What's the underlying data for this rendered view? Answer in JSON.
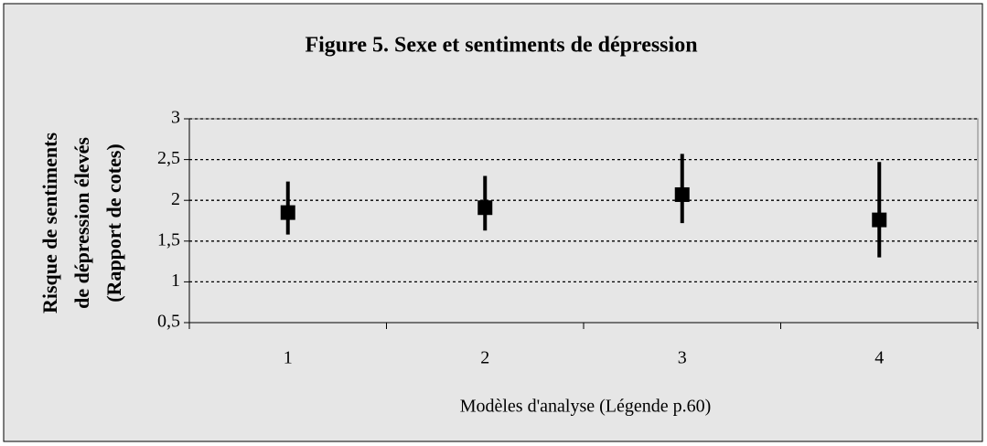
{
  "chart_data": {
    "type": "errorbar",
    "title": "Figure 5. Sexe et sentiments de dépression",
    "xlabel": "Modèles d'analyse (Légende p.60)",
    "ylabel": [
      "Risque de sentiments",
      "de dépression élevés",
      "(Rapport de cotes)"
    ],
    "categories": [
      "1",
      "2",
      "3",
      "4"
    ],
    "values": [
      1.85,
      1.91,
      2.07,
      1.76
    ],
    "low": [
      1.58,
      1.63,
      1.72,
      1.3
    ],
    "high": [
      2.23,
      2.3,
      2.57,
      2.47
    ],
    "color": "#000000",
    "ylim": [
      0.5,
      3
    ],
    "yticks": [
      {
        "value": 0.5,
        "label": "0,5"
      },
      1,
      {
        "value": 1.5,
        "label": "1,5"
      },
      2,
      {
        "value": 2.5,
        "label": "2,5"
      },
      3
    ],
    "grid": true
  }
}
